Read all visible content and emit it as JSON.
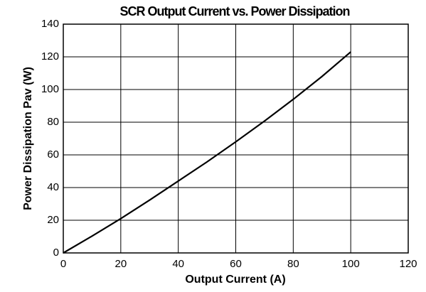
{
  "chart_data": {
    "type": "line",
    "title": "SCR Output Current vs. Power Dissipation",
    "x_label": "Output Current (A)",
    "y_label": "Power Dissipation Pav (W)",
    "x": [
      0,
      10,
      20,
      30,
      40,
      50,
      60,
      70,
      80,
      90,
      100
    ],
    "series": [
      {
        "name": "Power Dissipation",
        "color": "#000000",
        "values": [
          0,
          10.3,
          21,
          32.3,
          44,
          55.7,
          68,
          80.7,
          94,
          108,
          123
        ]
      }
    ],
    "xlim": [
      0,
      120
    ],
    "xticks": [
      0,
      20,
      40,
      60,
      80,
      100,
      120
    ],
    "ylim": [
      0,
      140
    ],
    "yticks": [
      0,
      20,
      40,
      60,
      80,
      100,
      120,
      140
    ],
    "grid": true
  }
}
